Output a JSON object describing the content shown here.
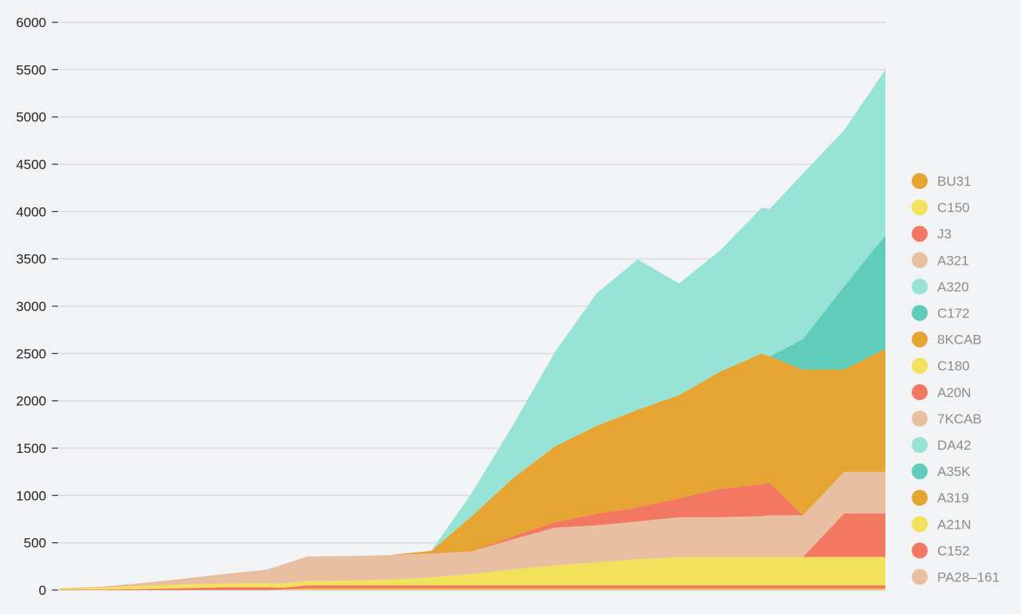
{
  "chart_data": {
    "type": "area",
    "stacked": true,
    "ylim": [
      0,
      6000
    ],
    "yticks": [
      0,
      500,
      1000,
      1500,
      2000,
      2500,
      3000,
      3500,
      4000,
      4500,
      5000,
      5500,
      6000
    ],
    "ytick_labels": [
      "0",
      "500",
      "1000",
      "1500",
      "2000",
      "2500",
      "3000",
      "3500",
      "4000",
      "4500",
      "5000",
      "5500",
      "6000"
    ],
    "grid": true,
    "legend_position": "right",
    "x": [
      0,
      5,
      10,
      15,
      20,
      25,
      27,
      30,
      35,
      40,
      45,
      50,
      55,
      60,
      65,
      70,
      75,
      80,
      85,
      86,
      90,
      95,
      100
    ],
    "series": [
      {
        "name": "BU31",
        "color": "#e6a532",
        "values": [
          0,
          0,
          0,
          0,
          0,
          0,
          0,
          5,
          5,
          5,
          5,
          5,
          5,
          5,
          5,
          5,
          5,
          5,
          5,
          5,
          5,
          5,
          5
        ]
      },
      {
        "name": "C150",
        "color": "#f2e15a",
        "values": [
          0,
          0,
          0,
          0,
          0,
          0,
          5,
          10,
          10,
          10,
          10,
          10,
          10,
          10,
          10,
          10,
          10,
          10,
          10,
          10,
          10,
          10,
          10
        ]
      },
      {
        "name": "J3",
        "color": "#f27862",
        "values": [
          5,
          5,
          10,
          20,
          30,
          30,
          20,
          35,
          35,
          35,
          35,
          35,
          35,
          35,
          35,
          35,
          35,
          35,
          35,
          35,
          35,
          35,
          35
        ]
      },
      {
        "name": "A321",
        "color": "#e8bfa0",
        "values": [
          0,
          0,
          0,
          0,
          0,
          0,
          0,
          0,
          0,
          0,
          0,
          0,
          0,
          0,
          0,
          0,
          0,
          0,
          0,
          0,
          0,
          0,
          0
        ]
      },
      {
        "name": "A320",
        "color": "#97e3d6",
        "values": [
          0,
          0,
          0,
          0,
          0,
          0,
          0,
          0,
          0,
          0,
          0,
          0,
          0,
          0,
          0,
          0,
          0,
          0,
          0,
          0,
          0,
          0,
          0
        ]
      },
      {
        "name": "C172",
        "color": "#5fcdba",
        "values": [
          0,
          0,
          0,
          0,
          0,
          0,
          0,
          0,
          0,
          0,
          0,
          0,
          0,
          0,
          0,
          0,
          0,
          0,
          0,
          0,
          0,
          0,
          0
        ]
      },
      {
        "name": "8KCAB",
        "color": "#e6a532",
        "values": [
          0,
          0,
          0,
          0,
          0,
          0,
          0,
          0,
          0,
          0,
          0,
          0,
          0,
          0,
          0,
          0,
          0,
          0,
          0,
          0,
          0,
          0,
          0
        ]
      },
      {
        "name": "C180",
        "color": "#f2e15a",
        "values": [
          0,
          0,
          0,
          0,
          0,
          0,
          0,
          0,
          0,
          0,
          0,
          0,
          0,
          0,
          0,
          0,
          0,
          0,
          0,
          0,
          0,
          0,
          0
        ]
      },
      {
        "name": "A20N",
        "color": "#f27862",
        "values": [
          0,
          0,
          0,
          0,
          0,
          0,
          0,
          0,
          0,
          0,
          0,
          0,
          0,
          0,
          0,
          0,
          0,
          0,
          0,
          0,
          0,
          0,
          0
        ]
      },
      {
        "name": "7KCAB",
        "color": "#e8bfa0",
        "values": [
          0,
          0,
          0,
          0,
          0,
          0,
          0,
          0,
          0,
          0,
          0,
          0,
          0,
          0,
          0,
          0,
          0,
          0,
          0,
          0,
          0,
          0,
          0
        ]
      },
      {
        "name": "DA42",
        "color": "#97e3d6",
        "values": [
          0,
          0,
          0,
          0,
          0,
          0,
          0,
          0,
          0,
          0,
          0,
          0,
          0,
          0,
          0,
          0,
          0,
          0,
          0,
          0,
          0,
          0,
          0
        ]
      },
      {
        "name": "A35K",
        "color": "#5fcdba",
        "values": [
          0,
          0,
          0,
          0,
          0,
          0,
          0,
          0,
          0,
          0,
          0,
          0,
          0,
          0,
          0,
          0,
          0,
          0,
          0,
          0,
          0,
          0,
          0
        ]
      },
      {
        "name": "A319",
        "color": "#e6a532",
        "values": [
          0,
          0,
          0,
          0,
          0,
          0,
          0,
          0,
          0,
          0,
          0,
          0,
          0,
          0,
          0,
          0,
          0,
          0,
          0,
          0,
          0,
          0,
          0
        ]
      },
      {
        "name": "A21N",
        "color": "#f2e15a",
        "values": [
          15,
          20,
          35,
          40,
          40,
          45,
          45,
          45,
          50,
          60,
          85,
          120,
          170,
          210,
          245,
          275,
          300,
          300,
          300,
          300,
          300,
          300,
          300
        ]
      },
      {
        "name": "C152",
        "color": "#f27862",
        "values": [
          0,
          0,
          0,
          0,
          0,
          0,
          0,
          0,
          0,
          0,
          0,
          0,
          0,
          0,
          0,
          0,
          0,
          0,
          0,
          0,
          0,
          460,
          460
        ]
      },
      {
        "name": "PA28–161",
        "color": "#e8bfa0",
        "values": [
          0,
          0,
          0,
          0,
          0,
          0,
          0,
          0,
          0,
          0,
          0,
          0,
          0,
          0,
          0,
          0,
          0,
          0,
          0,
          0,
          0,
          0,
          0
        ]
      }
    ],
    "series_top_layers": [
      {
        "name": "PA28–161 (band)",
        "color": "#e8bfa0",
        "values": [
          0,
          10,
          30,
          60,
          100,
          140,
          200,
          260,
          260,
          260,
          250,
          240,
          320,
          400,
          390,
          400,
          420,
          420,
          430,
          440,
          440,
          440,
          440
        ]
      },
      {
        "name": "J3 (band 2)",
        "color": "#f27862",
        "values": [
          0,
          0,
          0,
          0,
          0,
          0,
          0,
          0,
          0,
          0,
          0,
          0,
          30,
          60,
          120,
          150,
          200,
          300,
          340,
          340,
          0,
          0,
          0
        ]
      },
      {
        "name": "A319 (band)",
        "color": "#e6a532",
        "values": [
          0,
          0,
          0,
          0,
          0,
          0,
          0,
          0,
          0,
          0,
          30,
          380,
          620,
          800,
          930,
          1030,
          1090,
          1240,
          1380,
          1340,
          1540,
          1080,
          1300
        ]
      },
      {
        "name": "A35K (band)",
        "color": "#5fcdba",
        "values": [
          0,
          0,
          0,
          0,
          0,
          0,
          0,
          0,
          0,
          0,
          0,
          0,
          0,
          0,
          0,
          0,
          0,
          0,
          0,
          0,
          320,
          880,
          1200
        ]
      },
      {
        "name": "A320 (band)",
        "color": "#97e3d6",
        "values": [
          0,
          0,
          0,
          0,
          0,
          0,
          0,
          0,
          0,
          0,
          0,
          250,
          570,
          1000,
          1400,
          1590,
          1180,
          1280,
          1540,
          1560,
          1750,
          1650,
          1750
        ]
      }
    ]
  }
}
